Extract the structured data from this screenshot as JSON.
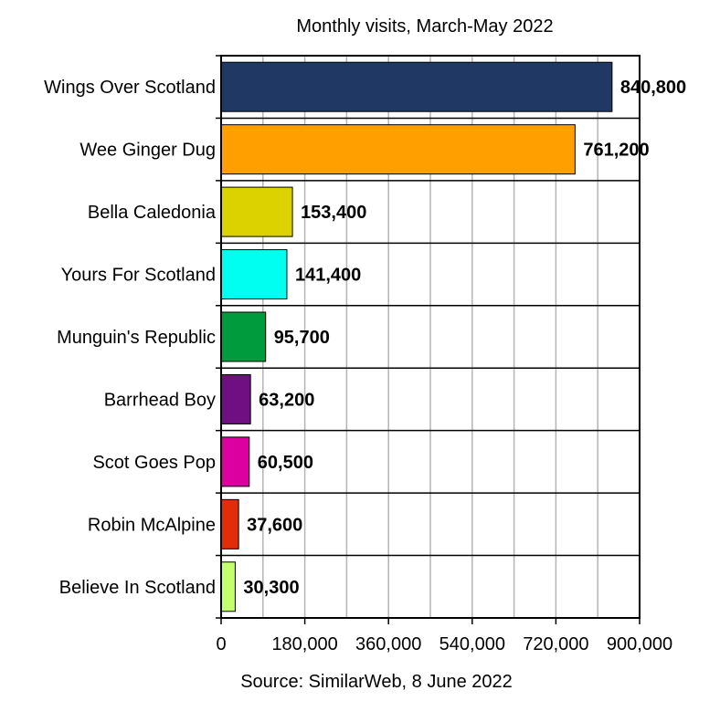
{
  "chart_data": {
    "type": "bar",
    "orientation": "horizontal",
    "title": "Monthly visits, March-May 2022",
    "source": "Source: SimilarWeb, 8 June 2022",
    "categories": [
      "Wings Over Scotland",
      "Wee Ginger Dug",
      "Bella Caledonia",
      "Yours For Scotland",
      "Munguin's Republic",
      "Barrhead Boy",
      "Scot Goes Pop",
      "Robin McAlpine",
      "Believe In Scotland"
    ],
    "values": [
      840800,
      761200,
      153400,
      141400,
      95700,
      63200,
      60500,
      37600,
      30300
    ],
    "value_labels": [
      "840,800",
      "761,200",
      "153,400",
      "141,400",
      "95,700",
      "63,200",
      "60,500",
      "37,600",
      "30,300"
    ],
    "colors": [
      "#203864",
      "#ffa000",
      "#dcd200",
      "#00fff0",
      "#009b3c",
      "#6e0f82",
      "#dc00a0",
      "#e12d0a",
      "#c3ff6e"
    ],
    "xlim": [
      0,
      900000
    ],
    "xticks": [
      0,
      180000,
      360000,
      540000,
      720000,
      900000
    ],
    "xtick_labels": [
      "0",
      "180,000",
      "360,000",
      "540,000",
      "720,000",
      "900,000"
    ],
    "grid": true,
    "xlabel": "",
    "ylabel": ""
  }
}
